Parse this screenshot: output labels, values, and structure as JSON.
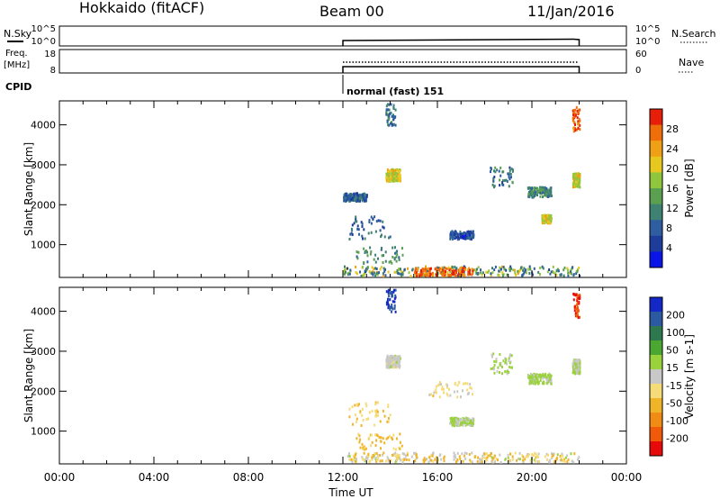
{
  "header": {
    "station": "Hokkaido (fitACF)",
    "beam": "Beam 00",
    "date": "11/Jan/2016"
  },
  "status_panels": {
    "nsky": {
      "label": "N.Sky",
      "ticks": [
        "10^5",
        "10^0"
      ],
      "right_ticks": [
        "10^5",
        "10^0"
      ],
      "right_label": "N.Search"
    },
    "freq": {
      "label_line1": "Freq.",
      "label_line2": "[MHz]",
      "ticks": [
        "18",
        "8"
      ],
      "right_ticks": [
        "60",
        "0"
      ],
      "right_label": "Nave"
    },
    "cpid": {
      "label": "CPID",
      "program": "normal (fast) 151"
    }
  },
  "chart_data": [
    {
      "type": "heatmap",
      "name": "power",
      "xlabel": "Time UT",
      "ylabel": "Slant Range [km]",
      "x_ticks": [
        "00:00",
        "04:00",
        "08:00",
        "12:00",
        "16:00",
        "20:00",
        "00:00"
      ],
      "x_range_hours": [
        0,
        24
      ],
      "y_ticks": [
        1000,
        2000,
        3000,
        4000
      ],
      "y_range_km": [
        180,
        4600
      ],
      "colorbar": {
        "label": "Power [dB]",
        "ticks": [
          "28",
          "24",
          "20",
          "16",
          "12",
          "8",
          "4"
        ],
        "range": [
          0,
          32
        ]
      },
      "data_window_hours": [
        12,
        22
      ],
      "scatter": [
        {
          "t": [
            12.0,
            22.0
          ],
          "r": [
            180,
            420
          ],
          "value": 20
        },
        {
          "t": [
            12.0,
            22.0
          ],
          "r": [
            180,
            420
          ],
          "value": 10
        },
        {
          "t": [
            15.0,
            17.5
          ],
          "r": [
            180,
            380
          ],
          "value": 28
        },
        {
          "t": [
            13.8,
            14.4
          ],
          "r": [
            2550,
            2850
          ],
          "value": 20
        },
        {
          "t": [
            13.8,
            14.2
          ],
          "r": [
            3950,
            4500
          ],
          "value": 10
        },
        {
          "t": [
            18.2,
            19.2
          ],
          "r": [
            2400,
            2900
          ],
          "value": 10
        },
        {
          "t": [
            19.8,
            20.8
          ],
          "r": [
            2150,
            2400
          ],
          "value": 12
        },
        {
          "t": [
            21.7,
            22.0
          ],
          "r": [
            3800,
            4400
          ],
          "value": 28
        },
        {
          "t": [
            21.7,
            22.0
          ],
          "r": [
            2400,
            2750
          ],
          "value": 20
        },
        {
          "t": [
            12.2,
            14.0
          ],
          "r": [
            1100,
            1700
          ],
          "value": 8
        },
        {
          "t": [
            12.5,
            14.5
          ],
          "r": [
            500,
            900
          ],
          "value": 12
        },
        {
          "t": [
            16.5,
            17.5
          ],
          "r": [
            1100,
            1300
          ],
          "value": 6
        },
        {
          "t": [
            20.4,
            20.8
          ],
          "r": [
            1500,
            1700
          ],
          "value": 20
        },
        {
          "t": [
            12.0,
            13.0
          ],
          "r": [
            2050,
            2250
          ],
          "value": 8
        }
      ]
    },
    {
      "type": "heatmap",
      "name": "velocity",
      "xlabel": "Time UT",
      "ylabel": "Slant Range [km]",
      "x_ticks": [
        "00:00",
        "04:00",
        "08:00",
        "12:00",
        "16:00",
        "20:00",
        "00:00"
      ],
      "x_range_hours": [
        0,
        24
      ],
      "y_ticks": [
        1000,
        2000,
        3000,
        4000
      ],
      "y_range_km": [
        180,
        4600
      ],
      "colorbar": {
        "label": "Velocity [m s-1]",
        "ticks": [
          "200",
          "100",
          "50",
          "15",
          "-15",
          "-50",
          "-100",
          "-200"
        ],
        "range": [
          -250,
          250
        ]
      },
      "data_window_hours": [
        12,
        22
      ],
      "scatter": [
        {
          "t": [
            12.0,
            22.0
          ],
          "r": [
            180,
            420
          ],
          "value": 0
        },
        {
          "t": [
            12.0,
            22.0
          ],
          "r": [
            180,
            420
          ],
          "value": -70
        },
        {
          "t": [
            13.8,
            14.2
          ],
          "r": [
            3950,
            4500
          ],
          "value": 200
        },
        {
          "t": [
            13.8,
            14.4
          ],
          "r": [
            2550,
            2850
          ],
          "value": 0
        },
        {
          "t": [
            18.2,
            19.2
          ],
          "r": [
            2400,
            2900
          ],
          "value": 30
        },
        {
          "t": [
            19.8,
            20.8
          ],
          "r": [
            2150,
            2400
          ],
          "value": 30
        },
        {
          "t": [
            21.7,
            22.0
          ],
          "r": [
            3800,
            4400
          ],
          "value": -200
        },
        {
          "t": [
            12.2,
            14.0
          ],
          "r": [
            1100,
            1700
          ],
          "value": -60
        },
        {
          "t": [
            12.5,
            14.5
          ],
          "r": [
            500,
            900
          ],
          "value": -80
        },
        {
          "t": [
            15.5,
            17.5
          ],
          "r": [
            1800,
            2200
          ],
          "value": -40
        },
        {
          "t": [
            16.5,
            17.5
          ],
          "r": [
            1100,
            1300
          ],
          "value": 30
        },
        {
          "t": [
            21.7,
            22.0
          ],
          "r": [
            2400,
            2750
          ],
          "value": 30
        }
      ]
    }
  ]
}
